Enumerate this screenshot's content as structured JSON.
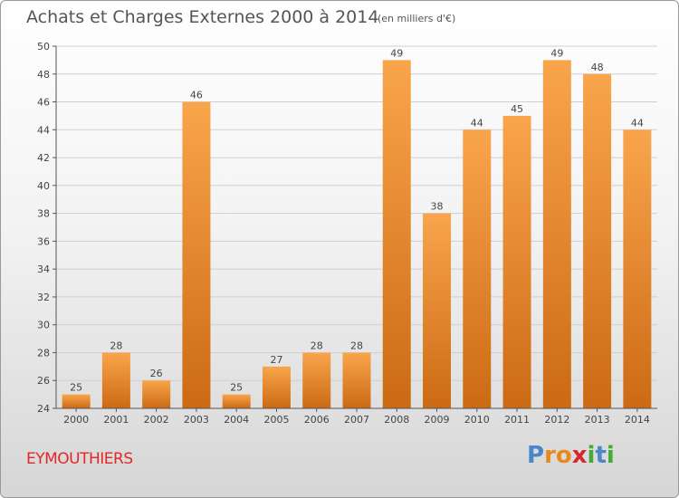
{
  "header": {
    "title": "Achats et Charges Externes 2000 à 2014",
    "unit": "(en milliers d'€)"
  },
  "footer": {
    "commune": "EYMOUTHIERS",
    "logo_text": "Proxiti",
    "logo_letters": [
      "P",
      "r",
      "o",
      "x",
      "i",
      "t",
      "i"
    ],
    "logo_colors": [
      "#4a86c8",
      "#e8891e",
      "#e8891e",
      "#d6262d",
      "#48a838",
      "#4a86c8",
      "#48a838"
    ]
  },
  "colors": {
    "bar_light": "#f9a54b",
    "bar_dark": "#cc6a14",
    "grid": "#cfcfcf",
    "axis": "#555555",
    "commune": "#e0282a"
  },
  "chart_data": {
    "type": "bar",
    "title": "Achats et Charges Externes 2000 à 2014",
    "subtitle": "(en milliers d'€)",
    "xlabel": "",
    "ylabel": "",
    "categories": [
      "2000",
      "2001",
      "2002",
      "2003",
      "2004",
      "2005",
      "2006",
      "2007",
      "2008",
      "2009",
      "2010",
      "2011",
      "2012",
      "2013",
      "2014"
    ],
    "values": [
      25,
      28,
      26,
      46,
      25,
      27,
      28,
      28,
      49,
      38,
      44,
      45,
      49,
      48,
      44
    ],
    "ylim": [
      24,
      50
    ],
    "yticks": [
      24,
      26,
      28,
      30,
      32,
      34,
      36,
      38,
      40,
      42,
      44,
      46,
      48,
      50
    ],
    "grid": true,
    "legend": "none"
  }
}
